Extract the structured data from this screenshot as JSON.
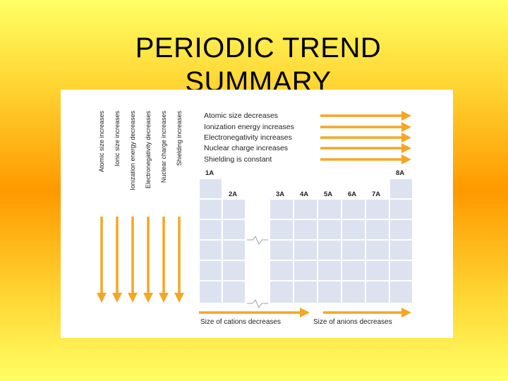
{
  "title_line1": "PERIODIC TREND",
  "title_line2": "SUMMARY",
  "vertical_trends": [
    "Atomic size increases",
    "Ionic size increases",
    "Ionization energy decreases",
    "Electronegativity decreases",
    "Nuclear charge increases",
    "Shielding increases"
  ],
  "horizontal_trends": [
    "Atomic size decreases",
    "Ionization energy increases",
    "Electronegativity increases",
    "Nuclear charge increases",
    "Shielding is constant"
  ],
  "groups": [
    "1A",
    "2A",
    "3A",
    "4A",
    "5A",
    "6A",
    "7A",
    "8A"
  ],
  "bottom_trends": {
    "cations": "Size of cations decreases",
    "anions": "Size of anions decreases"
  },
  "colors": {
    "arrow": "#f5a623",
    "cell": "#dde2f0",
    "cell_border": "#ffffff"
  }
}
